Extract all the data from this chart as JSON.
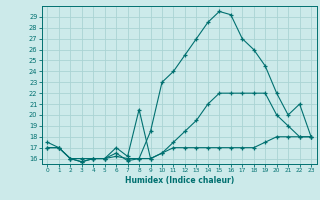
{
  "xlabel": "Humidex (Indice chaleur)",
  "bg_color": "#cceaea",
  "line_color": "#007070",
  "grid_color": "#aad4d4",
  "xlim": [
    -0.5,
    23.5
  ],
  "ylim": [
    15.5,
    30.0
  ],
  "yticks": [
    16,
    17,
    18,
    19,
    20,
    21,
    22,
    23,
    24,
    25,
    26,
    27,
    28,
    29
  ],
  "xticks": [
    0,
    1,
    2,
    3,
    4,
    5,
    6,
    7,
    8,
    9,
    10,
    11,
    12,
    13,
    14,
    15,
    16,
    17,
    18,
    19,
    20,
    21,
    22,
    23
  ],
  "line1_x": [
    0,
    1,
    2,
    3,
    4,
    5,
    6,
    7,
    8,
    9,
    10,
    11,
    12,
    13,
    14,
    15,
    16,
    17,
    18,
    19,
    20,
    21,
    22,
    23
  ],
  "line1_y": [
    17.0,
    17.0,
    16.0,
    15.7,
    16.0,
    16.0,
    16.2,
    16.0,
    16.0,
    16.0,
    16.5,
    17.0,
    17.0,
    17.0,
    17.0,
    17.0,
    17.0,
    17.0,
    17.0,
    17.5,
    18.0,
    18.0,
    18.0,
    18.0
  ],
  "line2_x": [
    0,
    1,
    2,
    3,
    4,
    5,
    6,
    7,
    8,
    9,
    10,
    11,
    12,
    13,
    14,
    15,
    16,
    17,
    18,
    19,
    20,
    21,
    22,
    23
  ],
  "line2_y": [
    17.0,
    17.0,
    16.0,
    16.0,
    16.0,
    16.0,
    17.0,
    16.2,
    20.5,
    16.0,
    16.5,
    17.5,
    18.5,
    19.5,
    21.0,
    22.0,
    22.0,
    22.0,
    22.0,
    22.0,
    20.0,
    19.0,
    18.0,
    18.0
  ],
  "line3_x": [
    0,
    1,
    2,
    3,
    4,
    5,
    6,
    7,
    8,
    9,
    10,
    11,
    12,
    13,
    14,
    15,
    16,
    17,
    18,
    19,
    20,
    21,
    22,
    23
  ],
  "line3_y": [
    17.5,
    17.0,
    16.0,
    15.7,
    16.0,
    16.0,
    16.5,
    15.8,
    16.0,
    18.5,
    23.0,
    24.0,
    25.5,
    27.0,
    28.5,
    29.5,
    29.2,
    27.0,
    26.0,
    24.5,
    22.0,
    20.0,
    21.0,
    18.0
  ]
}
